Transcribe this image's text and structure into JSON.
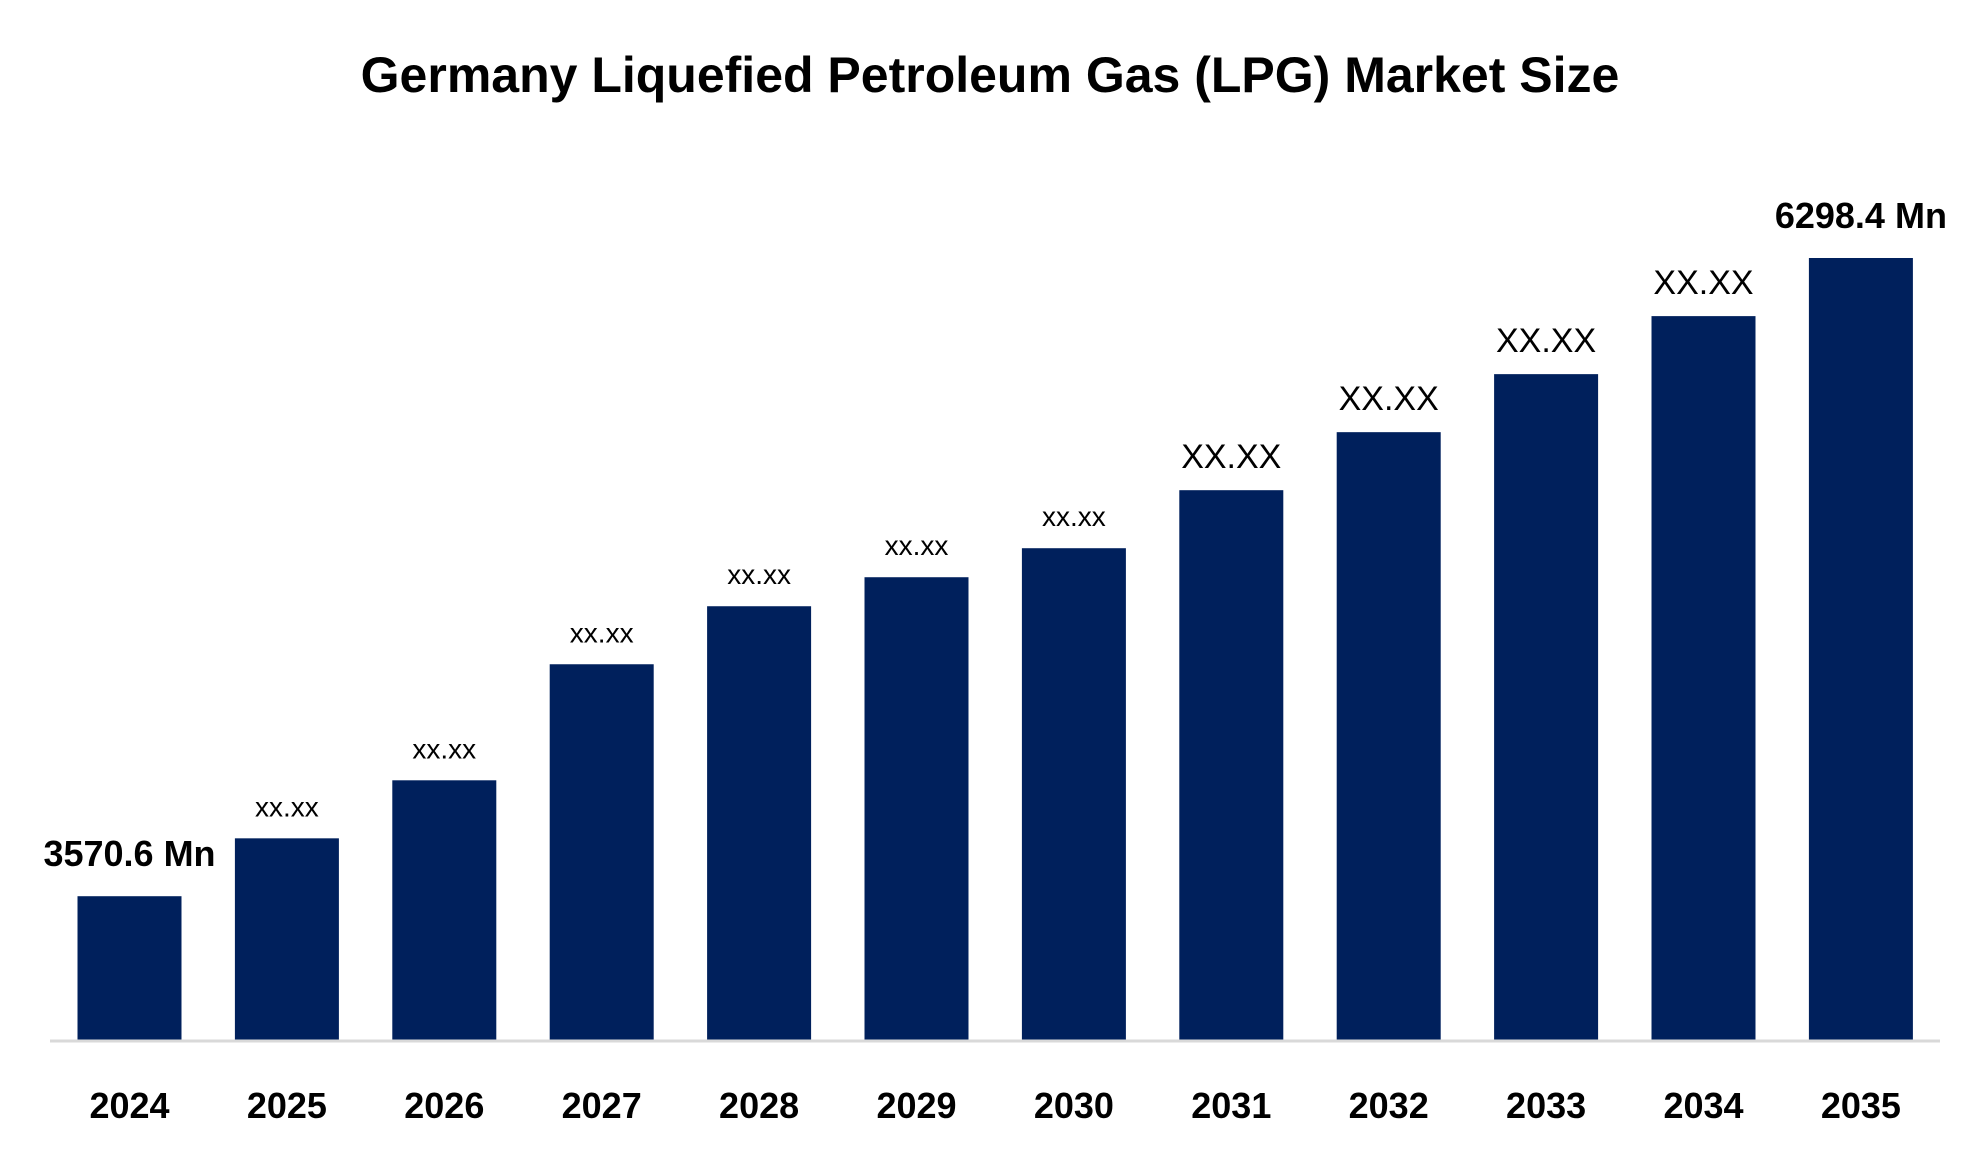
{
  "chart_data": {
    "type": "bar",
    "title": "Germany Liquefied Petroleum Gas (LPG) Market Size",
    "xlabel": "",
    "ylabel": "",
    "categories": [
      "2024",
      "2025",
      "2026",
      "2027",
      "2028",
      "2029",
      "2030",
      "2031",
      "2032",
      "2033",
      "2034",
      "2035"
    ],
    "values": [
      3570.6,
      3818,
      4066,
      4562,
      4810,
      4934,
      5058,
      5306,
      5554,
      5802,
      6050,
      6298.4
    ],
    "data_labels": [
      "3570.6 Mn",
      "xx.xx",
      "xx.xx",
      "xx.xx",
      "xx.xx",
      "xx.xx",
      "xx.xx",
      "XX.XX",
      "XX.XX",
      "XX.XX",
      "XX.XX",
      "6298.4 Mn"
    ],
    "ylim": [
      2956,
      6800
    ],
    "grid": false,
    "legend": "none",
    "colors": {
      "bar": "#00205C",
      "axis": "#D9D9D9"
    }
  }
}
